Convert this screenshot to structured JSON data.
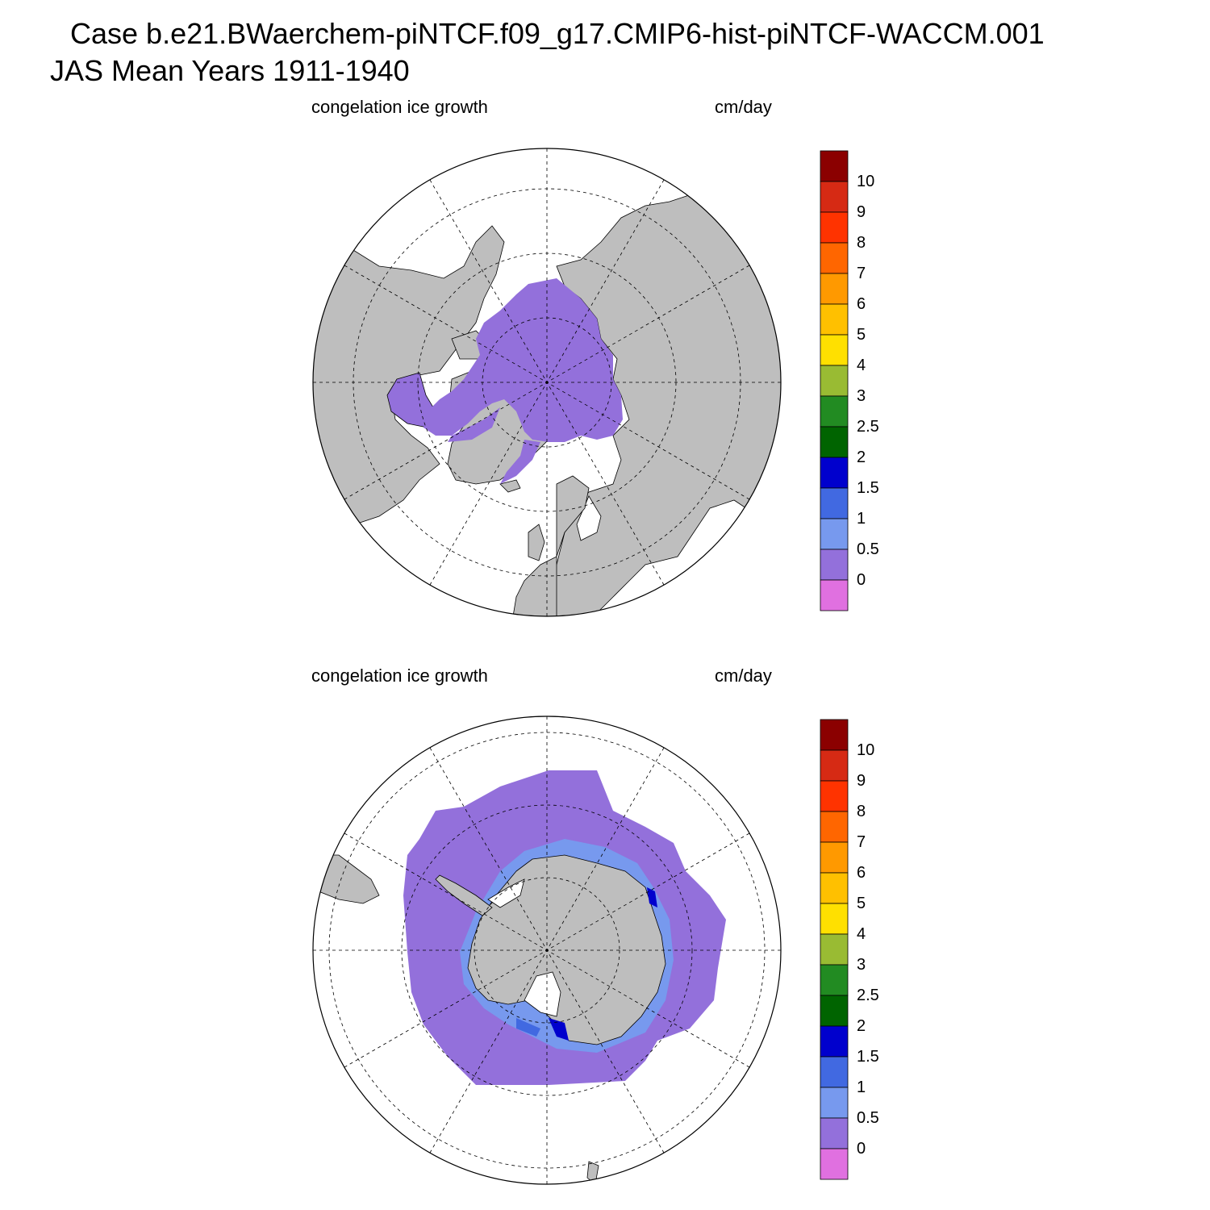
{
  "header": {
    "line1": "Case b.e21.BWaerchem-piNTCF.f09_g17.CMIP6-hist-piNTCF-WACCM.001",
    "line2": "JAS Mean   Years 1911-1940"
  },
  "panels": [
    {
      "id": "north",
      "hemisphere": "north",
      "left_label": "congelation ice growth",
      "right_label": "cm/day"
    },
    {
      "id": "south",
      "hemisphere": "south",
      "left_label": "congelation ice growth",
      "right_label": "cm/day"
    }
  ],
  "colorbar": {
    "labels": [
      "10",
      "9",
      "8",
      "7",
      "6",
      "5",
      "4",
      "3",
      "2.5",
      "2",
      "1.5",
      "1",
      "0.5",
      "0"
    ],
    "colors_top_to_bottom": [
      "#8b0000",
      "#d62a14",
      "#ff3300",
      "#ff6600",
      "#ff9900",
      "#ffc000",
      "#ffe000",
      "#99bb33",
      "#228b22",
      "#006400",
      "#0000cd",
      "#4169e1",
      "#7799ee",
      "#9370db",
      "#e070e0"
    ]
  },
  "colors": {
    "land": "#bebebe",
    "ocean": "#ffffff",
    "ice_low": "#9370db",
    "ice_mid": "#7799ee",
    "ice_high": "#4169e1",
    "ice_max": "#0000cd"
  }
}
